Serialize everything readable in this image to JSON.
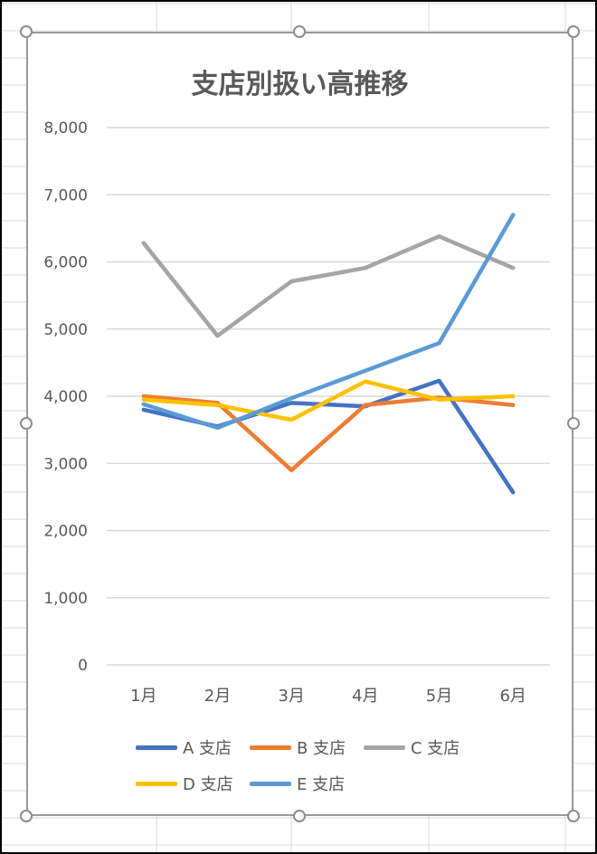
{
  "chart_data": {
    "type": "line",
    "title": "支店別扱い高推移",
    "categories": [
      "1月",
      "2月",
      "3月",
      "4月",
      "5月",
      "6月"
    ],
    "ylim": [
      0,
      8000
    ],
    "yticks": [
      "0",
      "1,000",
      "2,000",
      "3,000",
      "4,000",
      "5,000",
      "6,000",
      "7,000",
      "8,000"
    ],
    "grid": true,
    "legend_position": "bottom",
    "series": [
      {
        "name": "A 支店",
        "color": "#4472C4",
        "values": [
          3800,
          3550,
          3900,
          3850,
          4230,
          2570
        ]
      },
      {
        "name": "B 支店",
        "color": "#ED7D31",
        "values": [
          4000,
          3900,
          2900,
          3870,
          3980,
          3870
        ]
      },
      {
        "name": "C 支店",
        "color": "#A5A5A5",
        "values": [
          6280,
          4900,
          5710,
          5910,
          6380,
          5910
        ]
      },
      {
        "name": "D 支店",
        "color": "#FFC000",
        "values": [
          3950,
          3870,
          3650,
          4220,
          3950,
          4000
        ]
      },
      {
        "name": "E 支店",
        "color": "#5B9BD5",
        "values": [
          3880,
          3530,
          3970,
          4380,
          4790,
          6700
        ]
      }
    ]
  }
}
